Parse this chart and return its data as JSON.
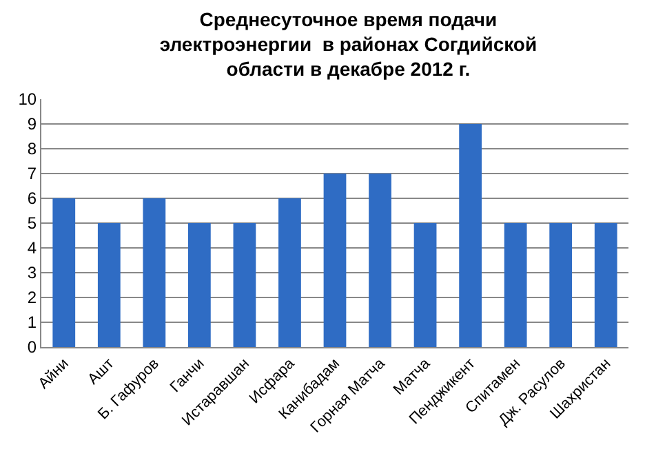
{
  "chart_data": {
    "type": "bar",
    "title": "Среднесуточное время подачи\nэлектроэнергии  в районах Согдийской\nобласти в декабре 2012 г.",
    "categories": [
      "Айни",
      "Ашт",
      "Б. Гафуров",
      "Ганчи",
      "Истаравшан",
      "Исфара",
      "Канибадам",
      "Горная Матча",
      "Матча",
      "Пенджикент",
      "Спитамен",
      "Дж. Расулов",
      "Шахристан"
    ],
    "values": [
      6,
      5,
      6,
      5,
      5,
      6,
      7,
      7,
      5,
      9,
      5,
      5,
      5
    ],
    "color": "#2f6cc4",
    "ylim": [
      0,
      10
    ],
    "yticks": [
      0,
      1,
      2,
      3,
      4,
      5,
      6,
      7,
      8,
      9,
      10
    ],
    "grid": "y"
  }
}
